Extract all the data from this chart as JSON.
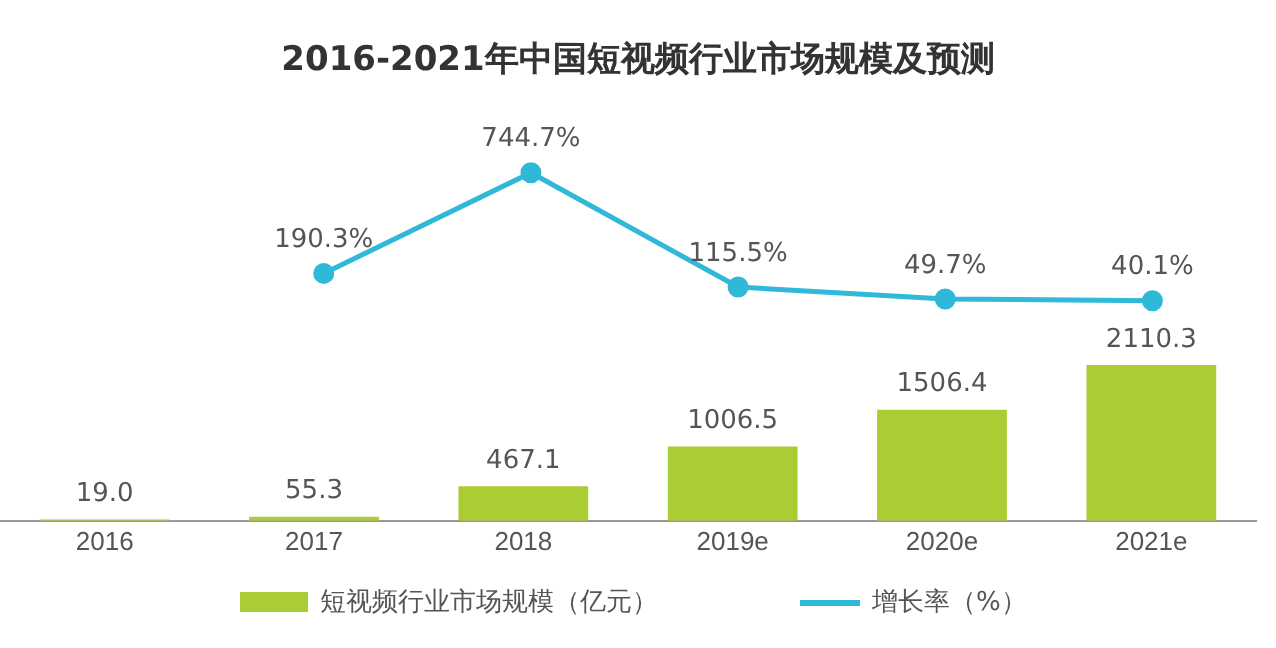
{
  "chart_data": [
    {
      "type": "line",
      "title": "2016-2021年中国短视频行业市场规模及预测",
      "categories": [
        null,
        null,
        null,
        null,
        null,
        null
      ],
      "series": [
        {
          "name": "增长率（%）",
          "color": "#2fb8d8",
          "values": [
            null,
            190.3,
            744.7,
            115.5,
            49.7,
            40.1
          ],
          "value_labels": [
            null,
            "190.3%",
            "744.7%",
            "115.5%",
            "49.7%",
            "40.1%"
          ]
        }
      ],
      "tick_labels": false,
      "data_labels": true,
      "legend": "bottom",
      "marker": "circle",
      "line_style": "solid"
    },
    {
      "type": "bar",
      "categories": [
        "2016",
        "2017",
        "2018",
        "2019e",
        "2020e",
        "2021e"
      ],
      "series": [
        {
          "name": "短视频行业市场规模（亿元）",
          "color": "#abcd34",
          "values": [
            19.0,
            55.3,
            467.1,
            1006.5,
            1506.4,
            2110.3
          ],
          "value_labels": [
            "19.0",
            "55.3",
            "467.1",
            "1006.5",
            "1506.4",
            "2110.3"
          ]
        }
      ],
      "tick_labels": "x",
      "data_labels": true,
      "legend": "bottom"
    }
  ]
}
